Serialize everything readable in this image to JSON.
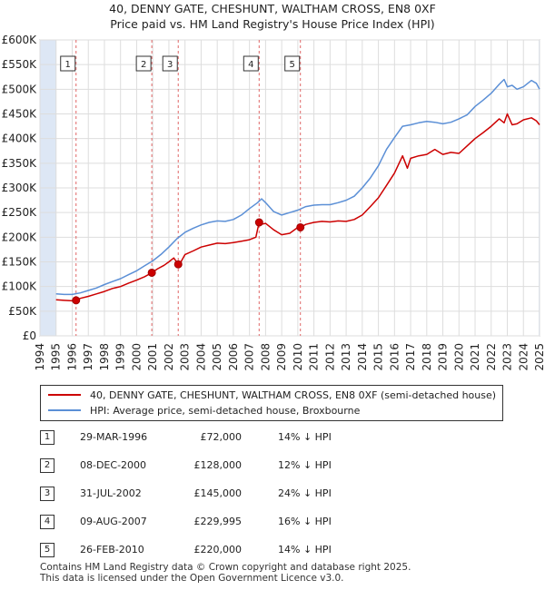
{
  "title_line1": "40, DENNY GATE, CHESHUNT, WALTHAM CROSS, EN8 0XF",
  "title_line2": "Price paid vs. HM Land Registry's House Price Index (HPI)",
  "colors": {
    "property": "#cc0000",
    "hpi": "#5b8fd6",
    "shade": "#dde7f5",
    "vline": "#e06666",
    "grid": "#dddddd"
  },
  "chart_data": {
    "type": "line",
    "title": "Price paid vs. HM Land Registry's House Price Index (HPI)",
    "xlabel": "",
    "ylabel": "",
    "xlim": [
      1994,
      2025
    ],
    "ylim": [
      0,
      600000
    ],
    "y_ticks": [
      0,
      50000,
      100000,
      150000,
      200000,
      250000,
      300000,
      350000,
      400000,
      450000,
      500000,
      550000,
      600000
    ],
    "y_tick_labels": [
      "£0",
      "£50K",
      "£100K",
      "£150K",
      "£200K",
      "£250K",
      "£300K",
      "£350K",
      "£400K",
      "£450K",
      "£500K",
      "£550K",
      "£600K"
    ],
    "x_ticks": [
      1994,
      1995,
      1996,
      1997,
      1998,
      1999,
      2000,
      2001,
      2002,
      2003,
      2004,
      2005,
      2006,
      2007,
      2008,
      2009,
      2010,
      2011,
      2012,
      2013,
      2014,
      2015,
      2016,
      2017,
      2018,
      2019,
      2020,
      2021,
      2022,
      2023,
      2024,
      2025
    ],
    "x_tick_labels": [
      "1994",
      "1995",
      "1996",
      "1997",
      "1998",
      "1999",
      "2000",
      "2001",
      "2002",
      "2003",
      "2004",
      "2005",
      "2006",
      "2007",
      "2008",
      "2009",
      "2010",
      "2011",
      "2012",
      "2013",
      "2014",
      "2015",
      "2016",
      "2017",
      "2018",
      "2019",
      "2020",
      "2021",
      "2022",
      "2023",
      "2024",
      "2025"
    ],
    "data_start": 1995.0,
    "data_end": 2025.0,
    "grid": true,
    "series": [
      {
        "name": "40, DENNY GATE, CHESHUNT, WALTHAM CROSS, EN8 0XF (semi-detached house)",
        "color": "#cc0000",
        "x": [
          1995.0,
          1995.5,
          1996.0,
          1996.24,
          1996.5,
          1997.0,
          1997.5,
          1998.0,
          1998.5,
          1999.0,
          1999.5,
          2000.0,
          2000.5,
          2000.94,
          2001.3,
          2001.7,
          2002.0,
          2002.3,
          2002.58,
          2002.75,
          2003.0,
          2003.5,
          2004.0,
          2004.5,
          2005.0,
          2005.5,
          2006.0,
          2006.5,
          2007.0,
          2007.4,
          2007.6,
          2007.7,
          2008.0,
          2008.5,
          2009.0,
          2009.5,
          2010.0,
          2010.16,
          2010.5,
          2011.0,
          2011.5,
          2012.0,
          2012.5,
          2013.0,
          2013.5,
          2014.0,
          2014.5,
          2015.0,
          2015.5,
          2016.0,
          2016.5,
          2016.8,
          2017.0,
          2017.5,
          2018.0,
          2018.5,
          2019.0,
          2019.5,
          2020.0,
          2020.5,
          2021.0,
          2021.5,
          2022.0,
          2022.5,
          2022.8,
          2023.0,
          2023.3,
          2023.6,
          2024.0,
          2024.5,
          2024.8,
          2025.0
        ],
        "y": [
          73000,
          72000,
          71000,
          72000,
          76000,
          80000,
          85000,
          90000,
          96000,
          100000,
          107000,
          113000,
          120000,
          128000,
          136000,
          143000,
          150000,
          158000,
          145000,
          150000,
          165000,
          172000,
          180000,
          184000,
          188000,
          187000,
          189000,
          192000,
          195000,
          200000,
          229995,
          226000,
          228000,
          215000,
          205000,
          208000,
          220000,
          220000,
          226000,
          230000,
          232000,
          231000,
          233000,
          232000,
          236000,
          245000,
          262000,
          280000,
          305000,
          330000,
          365000,
          340000,
          360000,
          365000,
          368000,
          378000,
          368000,
          372000,
          370000,
          385000,
          400000,
          412000,
          425000,
          440000,
          432000,
          450000,
          428000,
          430000,
          438000,
          442000,
          436000,
          428000
        ]
      },
      {
        "name": "HPI: Average price, semi-detached house, Broxbourne",
        "color": "#5b8fd6",
        "x": [
          1995.0,
          1995.5,
          1996.0,
          1996.5,
          1997.0,
          1997.5,
          1998.0,
          1998.5,
          1999.0,
          1999.5,
          2000.0,
          2000.5,
          2001.0,
          2001.5,
          2002.0,
          2002.5,
          2003.0,
          2003.5,
          2004.0,
          2004.5,
          2005.0,
          2005.5,
          2006.0,
          2006.5,
          2007.0,
          2007.5,
          2007.75,
          2008.0,
          2008.5,
          2009.0,
          2009.5,
          2010.0,
          2010.5,
          2011.0,
          2011.5,
          2012.0,
          2012.5,
          2013.0,
          2013.5,
          2014.0,
          2014.5,
          2015.0,
          2015.5,
          2016.0,
          2016.5,
          2017.0,
          2017.5,
          2018.0,
          2018.5,
          2019.0,
          2019.5,
          2020.0,
          2020.5,
          2021.0,
          2021.5,
          2022.0,
          2022.5,
          2022.8,
          2023.0,
          2023.3,
          2023.6,
          2024.0,
          2024.5,
          2024.8,
          2025.0
        ],
        "y": [
          85000,
          84000,
          84000,
          87000,
          92000,
          97000,
          104000,
          110000,
          116000,
          124000,
          132000,
          142000,
          152000,
          165000,
          180000,
          197000,
          210000,
          218000,
          225000,
          230000,
          233000,
          232000,
          236000,
          245000,
          258000,
          270000,
          278000,
          270000,
          252000,
          245000,
          250000,
          255000,
          262000,
          265000,
          266000,
          266000,
          270000,
          275000,
          283000,
          300000,
          320000,
          345000,
          378000,
          402000,
          425000,
          428000,
          432000,
          435000,
          433000,
          430000,
          433000,
          440000,
          448000,
          465000,
          478000,
          492000,
          510000,
          520000,
          505000,
          508000,
          500000,
          505000,
          518000,
          512000,
          500000
        ]
      }
    ],
    "transactions": [
      {
        "label": "1",
        "x": 1996.24,
        "y": 72000
      },
      {
        "label": "2",
        "x": 2000.94,
        "y": 128000
      },
      {
        "label": "3",
        "x": 2002.58,
        "y": 145000
      },
      {
        "label": "4",
        "x": 2007.6,
        "y": 229995
      },
      {
        "label": "5",
        "x": 2010.16,
        "y": 220000
      }
    ]
  },
  "legend": {
    "property_label": "40, DENNY GATE, CHESHUNT, WALTHAM CROSS, EN8 0XF (semi-detached house)",
    "hpi_label": "HPI: Average price, semi-detached house, Broxbourne"
  },
  "sales": [
    {
      "num": "1",
      "date": "29-MAR-1996",
      "price": "£72,000",
      "hpi": "14% ↓ HPI"
    },
    {
      "num": "2",
      "date": "08-DEC-2000",
      "price": "£128,000",
      "hpi": "12% ↓ HPI"
    },
    {
      "num": "3",
      "date": "31-JUL-2002",
      "price": "£145,000",
      "hpi": "24% ↓ HPI"
    },
    {
      "num": "4",
      "date": "09-AUG-2007",
      "price": "£229,995",
      "hpi": "16% ↓ HPI"
    },
    {
      "num": "5",
      "date": "26-FEB-2010",
      "price": "£220,000",
      "hpi": "14% ↓ HPI"
    }
  ],
  "footer": {
    "line1": "Contains HM Land Registry data © Crown copyright and database right 2025.",
    "line2": "This data is licensed under the Open Government Licence v3.0."
  }
}
